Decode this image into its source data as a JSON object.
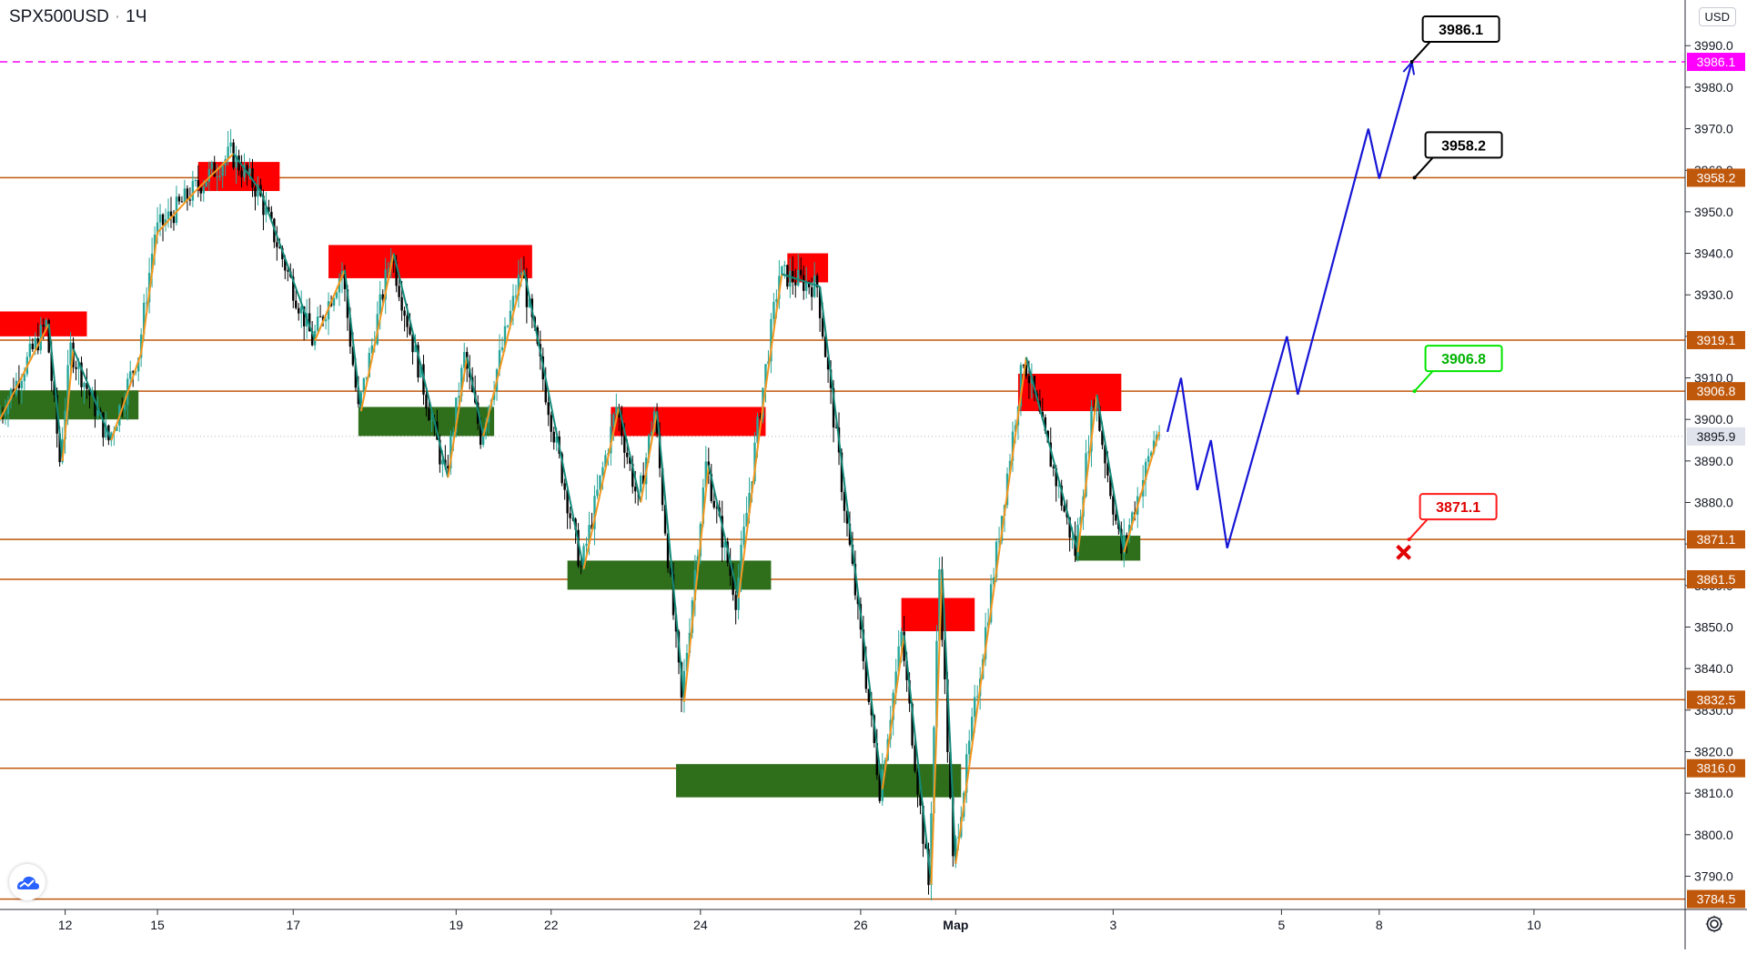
{
  "header": {
    "symbol": "SPX500USD",
    "interval": "1Ч"
  },
  "currency": "USD",
  "logo_icon": "tradingview-cloud-icon",
  "settings_icon": "gear-icon",
  "colors": {
    "bull": "#26a69a",
    "bear": "#000000",
    "level": "#c0580c",
    "zigzag_up": "#f5961d",
    "zigzag_down": "#138a7a",
    "supply": "#ff0000",
    "demand": "#2f6e1b",
    "forecast": "#1515d6",
    "target_line": "#ff00ff",
    "last_price": "#e0e3eb"
  },
  "chart_data": {
    "type": "candlestick",
    "y_axis": {
      "min": 3782,
      "max": 4001,
      "ticks": [
        3790.0,
        3800.0,
        3810.0,
        3820.0,
        3830.0,
        3840.0,
        3850.0,
        3860.0,
        3870.0,
        3880.0,
        3890.0,
        3900.0,
        3910.0,
        3920.0,
        3930.0,
        3940.0,
        3950.0,
        3960.0,
        3970.0,
        3980.0,
        3990.0
      ],
      "tick_labels": [
        "3790.0",
        "3800.0",
        "3810.0",
        "3820.0",
        "3830.0",
        "3840.0",
        "3850.0",
        "3860.0",
        "3870.0",
        "3880.0",
        "3890.0",
        "3900.0",
        "3910.0",
        "3920.0",
        "3930.0",
        "3940.0",
        "3950.0",
        "3960.0",
        "3970.0",
        "3980.0",
        "3990.0"
      ]
    },
    "x_axis": {
      "min": 0,
      "max": 620,
      "ticks": [
        {
          "x": 24,
          "label": "12"
        },
        {
          "x": 58,
          "label": "15"
        },
        {
          "x": 108,
          "label": "17"
        },
        {
          "x": 168,
          "label": "19"
        },
        {
          "x": 203,
          "label": "22"
        },
        {
          "x": 258,
          "label": "24"
        },
        {
          "x": 317,
          "label": "26"
        },
        {
          "x": 352,
          "label": "Мар"
        },
        {
          "x": 410,
          "label": "3"
        },
        {
          "x": 472,
          "label": "5"
        },
        {
          "x": 508,
          "label": "8"
        },
        {
          "x": 565,
          "label": "10"
        }
      ]
    },
    "horizontal_levels": [
      {
        "price": 3958.2,
        "label": "3958.2"
      },
      {
        "price": 3919.1,
        "label": "3919.1"
      },
      {
        "price": 3906.8,
        "label": "3906.8"
      },
      {
        "price": 3871.1,
        "label": "3871.1"
      },
      {
        "price": 3861.5,
        "label": "3861.5"
      },
      {
        "price": 3832.5,
        "label": "3832.5"
      },
      {
        "price": 3816.0,
        "label": "3816.0"
      },
      {
        "price": 3784.5,
        "label": "3784.5"
      }
    ],
    "target_level": {
      "price": 3986.1,
      "label": "3986.1"
    },
    "last_price": {
      "price": 3895.9,
      "label": "3895.9"
    },
    "zones": [
      {
        "kind": "supply",
        "x1": 0,
        "x2": 32,
        "y1": 3926,
        "y2": 3920
      },
      {
        "kind": "demand",
        "x1": 0,
        "x2": 51,
        "y1": 3907,
        "y2": 3900
      },
      {
        "kind": "supply",
        "x1": 73,
        "x2": 103,
        "y1": 3962,
        "y2": 3955
      },
      {
        "kind": "supply",
        "x1": 121,
        "x2": 196,
        "y1": 3942,
        "y2": 3934
      },
      {
        "kind": "demand",
        "x1": 132,
        "x2": 182,
        "y1": 3903,
        "y2": 3896
      },
      {
        "kind": "supply",
        "x1": 225,
        "x2": 282,
        "y1": 3903,
        "y2": 3896
      },
      {
        "kind": "demand",
        "x1": 209,
        "x2": 284,
        "y1": 3866,
        "y2": 3859
      },
      {
        "kind": "supply",
        "x1": 290,
        "x2": 305,
        "y1": 3940,
        "y2": 3933
      },
      {
        "kind": "supply",
        "x1": 332,
        "x2": 359,
        "y1": 3857,
        "y2": 3849
      },
      {
        "kind": "demand",
        "x1": 249,
        "x2": 354,
        "y1": 3817,
        "y2": 3809
      },
      {
        "kind": "supply",
        "x1": 375,
        "x2": 413,
        "y1": 3911,
        "y2": 3902
      },
      {
        "kind": "demand",
        "x1": 396,
        "x2": 420,
        "y1": 3872,
        "y2": 3866
      }
    ],
    "zigzag": [
      [
        0,
        3900
      ],
      [
        18,
        3923
      ],
      [
        23,
        3890
      ],
      [
        27,
        3917
      ],
      [
        41,
        3895
      ],
      [
        52,
        3916
      ],
      [
        58,
        3945
      ],
      [
        72,
        3955
      ],
      [
        86,
        3964
      ],
      [
        96,
        3955
      ],
      [
        116,
        3919
      ],
      [
        127,
        3936
      ],
      [
        133,
        3902
      ],
      [
        145,
        3940
      ],
      [
        165,
        3886
      ],
      [
        172,
        3915
      ],
      [
        178,
        3896
      ],
      [
        193,
        3936
      ],
      [
        215,
        3864
      ],
      [
        228,
        3903
      ],
      [
        236,
        3880
      ],
      [
        242,
        3902
      ],
      [
        252,
        3832
      ],
      [
        261,
        3889
      ],
      [
        272,
        3857
      ],
      [
        281,
        3903
      ],
      [
        288,
        3935
      ],
      [
        302,
        3932
      ],
      [
        325,
        3811
      ],
      [
        333,
        3848
      ],
      [
        343,
        3788
      ],
      [
        347,
        3864
      ],
      [
        352,
        3793
      ],
      [
        378,
        3915
      ],
      [
        397,
        3868
      ],
      [
        404,
        3906
      ],
      [
        414,
        3868
      ],
      [
        427,
        3897
      ]
    ],
    "forecast_path": [
      [
        430,
        3897
      ],
      [
        435,
        3910
      ],
      [
        441,
        3883
      ],
      [
        446,
        3895
      ],
      [
        452,
        3869
      ],
      [
        474,
        3920
      ],
      [
        478,
        3906
      ],
      [
        504,
        3970
      ],
      [
        508,
        3958
      ],
      [
        520,
        3986
      ]
    ],
    "callouts": [
      {
        "label": "3986.1",
        "anchor_x": 520,
        "anchor_price": 3986.1,
        "style": "black"
      },
      {
        "label": "3958.2",
        "anchor_x": 521,
        "anchor_price": 3958.2,
        "style": "black"
      },
      {
        "label": "3906.8",
        "anchor_x": 521,
        "anchor_price": 3906.8,
        "style": "green"
      },
      {
        "label": "3871.1",
        "anchor_x": 519,
        "anchor_price": 3871.1,
        "style": "red"
      }
    ],
    "stop_marker": {
      "x": 517,
      "price": 3868
    }
  }
}
